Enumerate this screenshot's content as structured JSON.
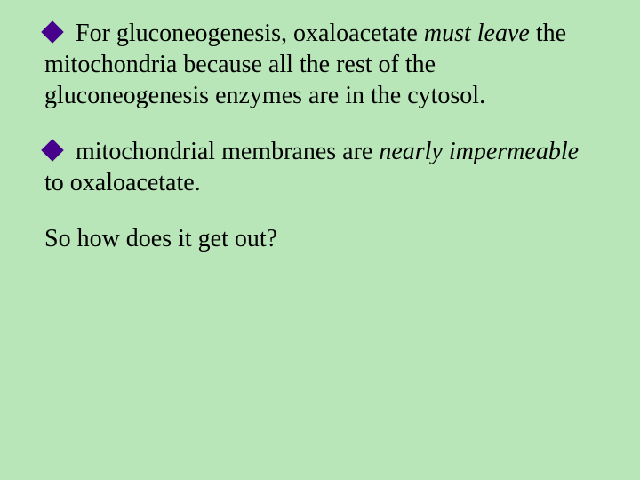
{
  "slide": {
    "background_color": "#b8e6b8",
    "text_color": "#000000",
    "bullet_color": "#46008c",
    "font_family": "Times New Roman",
    "font_size_pt": 28,
    "paragraphs": [
      {
        "has_bullet": true,
        "runs": [
          {
            "text": " For gluconeogenesis, oxaloacetate ",
            "italic": false
          },
          {
            "text": "must leave",
            "italic": true
          },
          {
            "text": " the mitochondria because all the rest of the gluconeogenesis enzymes are in the cytosol.",
            "italic": false
          }
        ]
      },
      {
        "has_bullet": true,
        "runs": [
          {
            "text": " mitochondrial membranes are ",
            "italic": false
          },
          {
            "text": "nearly impermeable",
            "italic": true
          },
          {
            "text": " to oxaloacetate.",
            "italic": false
          }
        ]
      },
      {
        "has_bullet": false,
        "runs": [
          {
            "text": "So how does it get out?",
            "italic": false
          }
        ]
      }
    ]
  }
}
